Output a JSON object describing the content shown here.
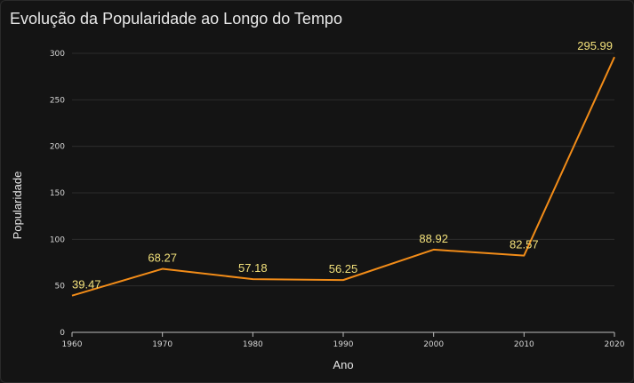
{
  "chart_data": {
    "type": "line",
    "title": "Evolução da Popularidade ao Longo do Tempo",
    "xlabel": "Ano",
    "ylabel": "Popularidade",
    "x": [
      1960,
      1970,
      1980,
      1990,
      2000,
      2010,
      2020
    ],
    "x_ticks": [
      "1960",
      "1970",
      "1980",
      "1990",
      "2000",
      "2010",
      "2020"
    ],
    "xlim": [
      1960,
      2020
    ],
    "y_ticks": [
      "0",
      "50",
      "100",
      "150",
      "200",
      "250",
      "300"
    ],
    "ylim": [
      0,
      300
    ],
    "grid": true,
    "legend": "none",
    "series": [
      {
        "values": [
          39.47,
          68.27,
          57.18,
          56.25,
          88.92,
          82.57,
          295.99
        ],
        "labels": [
          "39.47",
          "68.27",
          "57.18",
          "56.25",
          "88.92",
          "82.57",
          "295.99"
        ],
        "color": "#f28c18"
      }
    ]
  },
  "colors": {
    "background": "#141414",
    "grid": "#2c2c2c",
    "text": "#e6e6e6",
    "data_label": "#f2e07a",
    "line": "#f28c18"
  }
}
